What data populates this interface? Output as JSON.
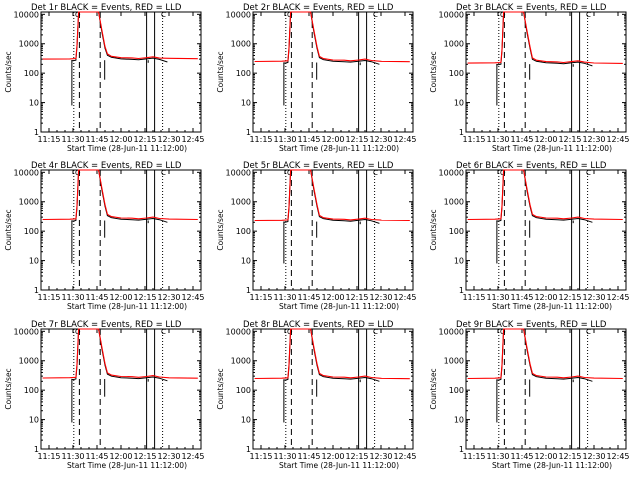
{
  "chart_data": [
    {
      "type": "line",
      "title": "Det 1r BLACK = Events, RED = LLD",
      "xlabel": "Start Time (28-Jun-11 11:12:00)",
      "ylabel": "Counts/sec",
      "xticks": [
        "11:15",
        "11:30",
        "11:45",
        "12:00",
        "12:15",
        "12:30",
        "12:45"
      ],
      "ylim": [
        1,
        12000
      ],
      "yticks": [
        "1",
        "10",
        "100",
        "1000",
        "10000"
      ],
      "base": 300,
      "tail": 310,
      "markers": {
        "box": "O",
        "cup": "C"
      },
      "series": [
        {
          "name": "Events",
          "color": "#000000"
        },
        {
          "name": "LLD",
          "color": "#ff0000"
        }
      ]
    },
    {
      "type": "line",
      "title": "Det 2r BLACK = Events, RED = LLD",
      "xlabel": "Start Time (28-Jun-11 11:12:00)",
      "ylabel": "Counts/sec",
      "xticks": [
        "11:15",
        "11:30",
        "11:45",
        "12:00",
        "12:15",
        "12:30",
        "12:45"
      ],
      "ylim": [
        1,
        12000
      ],
      "yticks": [
        "1",
        "10",
        "100",
        "1000",
        "10000"
      ],
      "base": 250,
      "tail": 245,
      "markers": {
        "box": "O",
        "cup": "C"
      },
      "series": [
        {
          "name": "Events",
          "color": "#000000"
        },
        {
          "name": "LLD",
          "color": "#ff0000"
        }
      ]
    },
    {
      "type": "line",
      "title": "Det 3r BLACK = Events, RED = LLD",
      "xlabel": "Start Time (28-Jun-11 11:12:00)",
      "ylabel": "Counts/sec",
      "xticks": [
        "11:15",
        "11:30",
        "11:45",
        "12:00",
        "12:15",
        "12:30",
        "12:45"
      ],
      "ylim": [
        1,
        12000
      ],
      "yticks": [
        "1",
        "10",
        "100",
        "1000",
        "10000"
      ],
      "base": 220,
      "tail": 215,
      "markers": {
        "box": "O",
        "cup": "C"
      },
      "series": [
        {
          "name": "Events",
          "color": "#000000"
        },
        {
          "name": "LLD",
          "color": "#ff0000"
        }
      ]
    },
    {
      "type": "line",
      "title": "Det 4r BLACK = Events, RED = LLD",
      "xlabel": "Start Time (28-Jun-11 11:12:00)",
      "ylabel": "Counts/sec",
      "xticks": [
        "11:15",
        "11:30",
        "11:45",
        "12:00",
        "12:15",
        "12:30",
        "12:45"
      ],
      "ylim": [
        1,
        12000
      ],
      "yticks": [
        "1",
        "10",
        "100",
        "1000",
        "10000"
      ],
      "base": 250,
      "tail": 250,
      "markers": {
        "box": "O",
        "cup": "C"
      },
      "series": [
        {
          "name": "Events",
          "color": "#000000"
        },
        {
          "name": "LLD",
          "color": "#ff0000"
        }
      ]
    },
    {
      "type": "line",
      "title": "Det 5r BLACK = Events, RED = LLD",
      "xlabel": "Start Time (28-Jun-11 11:12:00)",
      "ylabel": "Counts/sec",
      "xticks": [
        "11:15",
        "11:30",
        "11:45",
        "12:00",
        "12:15",
        "12:30",
        "12:45"
      ],
      "ylim": [
        1,
        12000
      ],
      "yticks": [
        "1",
        "10",
        "100",
        "1000",
        "10000"
      ],
      "base": 230,
      "tail": 230,
      "markers": {
        "box": "O",
        "cup": "C"
      },
      "series": [
        {
          "name": "Events",
          "color": "#000000"
        },
        {
          "name": "LLD",
          "color": "#ff0000"
        }
      ]
    },
    {
      "type": "line",
      "title": "Det 6r BLACK = Events, RED = LLD",
      "xlabel": "Start Time (28-Jun-11 11:12:00)",
      "ylabel": "Counts/sec",
      "xticks": [
        "11:15",
        "11:30",
        "11:45",
        "12:00",
        "12:15",
        "12:30",
        "12:45"
      ],
      "ylim": [
        1,
        12000
      ],
      "yticks": [
        "1",
        "10",
        "100",
        "1000",
        "10000"
      ],
      "base": 250,
      "tail": 250,
      "markers": {
        "box": "O",
        "cup": "C"
      },
      "series": [
        {
          "name": "Events",
          "color": "#000000"
        },
        {
          "name": "LLD",
          "color": "#ff0000"
        }
      ]
    },
    {
      "type": "line",
      "title": "Det 7r BLACK = Events, RED = LLD",
      "xlabel": "Start Time (28-Jun-11 11:12:00)",
      "ylabel": "Counts/sec",
      "xticks": [
        "11:15",
        "11:30",
        "11:45",
        "12:00",
        "12:15",
        "12:30",
        "12:45"
      ],
      "ylim": [
        1,
        12000
      ],
      "yticks": [
        "1",
        "10",
        "100",
        "1000",
        "10000"
      ],
      "base": 260,
      "tail": 255,
      "markers": {
        "box": "O",
        "cup": "C"
      },
      "series": [
        {
          "name": "Events",
          "color": "#000000"
        },
        {
          "name": "LLD",
          "color": "#ff0000"
        }
      ]
    },
    {
      "type": "line",
      "title": "Det 8r BLACK = Events, RED = LLD",
      "xlabel": "Start Time (28-Jun-11 11:12:00)",
      "ylabel": "Counts/sec",
      "xticks": [
        "11:15",
        "11:30",
        "11:45",
        "12:00",
        "12:15",
        "12:30",
        "12:45"
      ],
      "ylim": [
        1,
        12000
      ],
      "yticks": [
        "1",
        "10",
        "100",
        "1000",
        "10000"
      ],
      "base": 250,
      "tail": 245,
      "markers": {
        "box": "O",
        "cup": "C"
      },
      "series": [
        {
          "name": "Events",
          "color": "#000000"
        },
        {
          "name": "LLD",
          "color": "#ff0000"
        }
      ]
    },
    {
      "type": "line",
      "title": "Det 9r BLACK = Events, RED = LLD",
      "xlabel": "Start Time (28-Jun-11 11:12:00)",
      "ylabel": "Counts/sec",
      "xticks": [
        "11:15",
        "11:30",
        "11:45",
        "12:00",
        "12:15",
        "12:30",
        "12:45"
      ],
      "ylim": [
        1,
        12000
      ],
      "yticks": [
        "1",
        "10",
        "100",
        "1000",
        "10000"
      ],
      "base": 250,
      "tail": 250,
      "markers": {
        "box": "O",
        "cup": "C"
      },
      "series": [
        {
          "name": "Events",
          "color": "#000000"
        },
        {
          "name": "LLD",
          "color": "#ff0000"
        }
      ]
    }
  ]
}
